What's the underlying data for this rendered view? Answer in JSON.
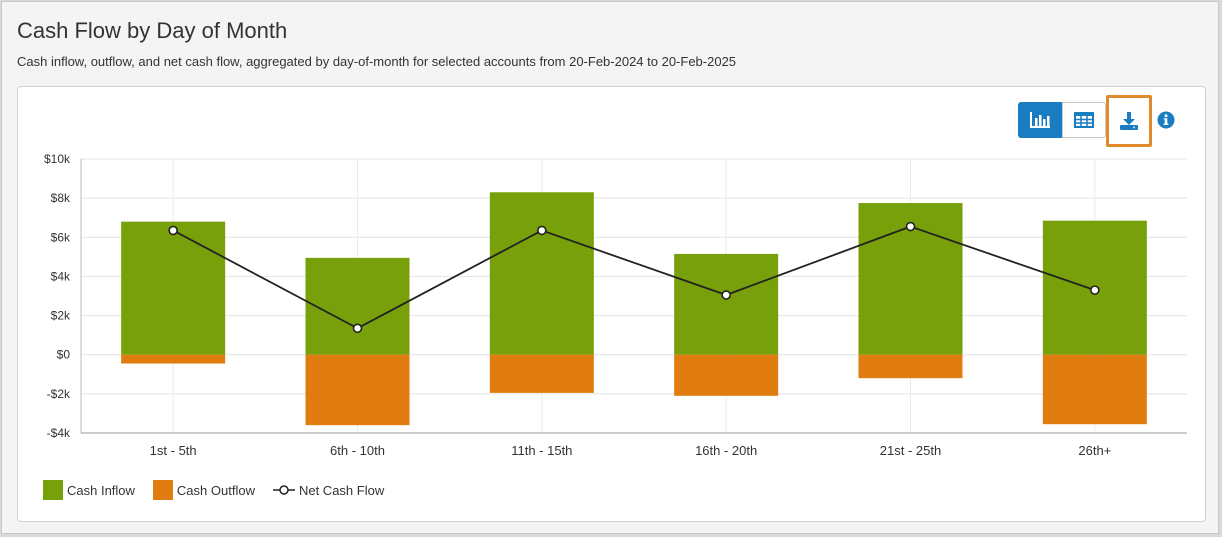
{
  "header": {
    "title": "Cash Flow by Day of Month",
    "subtitle": "Cash inflow, outflow, and net cash flow, aggregated by day-of-month for selected accounts from 20-Feb-2024 to 20-Feb-2025"
  },
  "toolbar": {
    "chart_icon": "bar-chart-icon",
    "table_icon": "table-icon",
    "download_icon": "download-icon",
    "info_icon": "info-icon",
    "active_color": "#1a7cc1",
    "highlight_color": "#e08a2c"
  },
  "legend": {
    "inflow": "Cash Inflow",
    "outflow": "Cash Outflow",
    "net": "Net Cash Flow"
  },
  "chart_data": {
    "type": "bar",
    "title": "",
    "xlabel": "",
    "ylabel": "",
    "categories": [
      "1st - 5th",
      "6th - 10th",
      "11th - 15th",
      "16th - 20th",
      "21st - 25th",
      "26th+"
    ],
    "series": [
      {
        "name": "Cash Inflow",
        "type": "bar",
        "color": "#77a00a",
        "values": [
          6800,
          4950,
          8300,
          5150,
          7750,
          6850
        ]
      },
      {
        "name": "Cash Outflow",
        "type": "bar",
        "color": "#e07c10",
        "values": [
          -450,
          -3600,
          -1950,
          -2100,
          -1200,
          -3550
        ]
      },
      {
        "name": "Net Cash Flow",
        "type": "line",
        "color": "#222222",
        "values": [
          6350,
          1350,
          6350,
          3050,
          6550,
          3300
        ]
      }
    ],
    "ylim": [
      -4000,
      10000
    ],
    "yticks": [
      10000,
      8000,
      6000,
      4000,
      2000,
      0,
      -2000,
      -4000
    ],
    "ytick_labels": [
      "$10k",
      "$8k",
      "$6k",
      "$4k",
      "$2k",
      "$0",
      "-$2k",
      "-$4k"
    ],
    "grid": true,
    "legend_position": "bottom-left"
  }
}
